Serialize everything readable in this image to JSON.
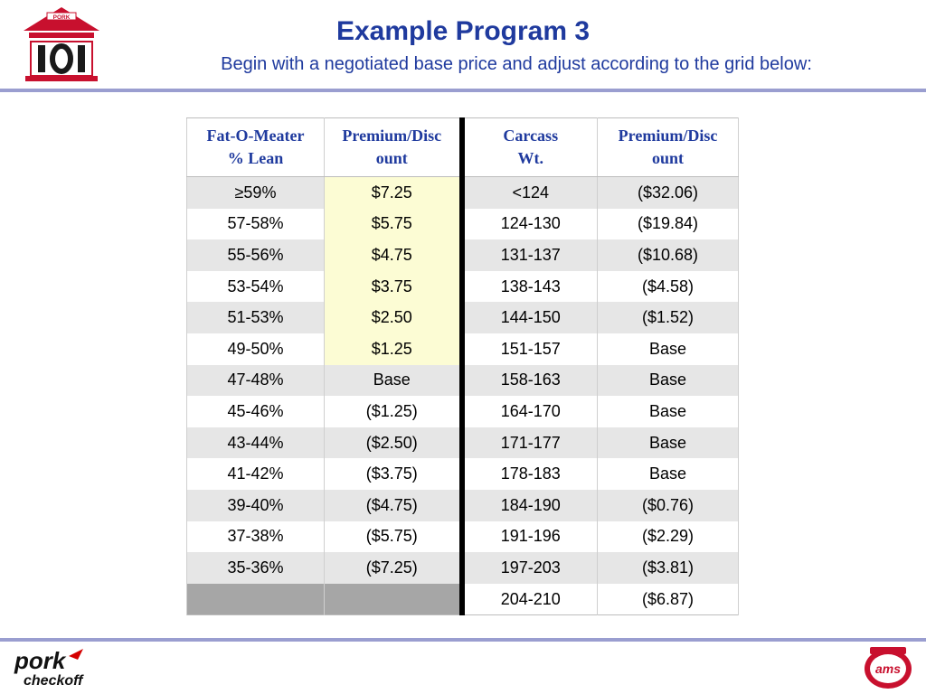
{
  "header": {
    "title": "Example Program 3",
    "subtitle": "Begin with a negotiated base price and adjust according to the grid below:"
  },
  "logos": {
    "top_left": {
      "text": "PORK",
      "mark": "101"
    },
    "bottom_left": {
      "line1": "pork",
      "line2": "checkoff"
    },
    "bottom_right": {
      "text": "ams"
    }
  },
  "colors": {
    "title_blue": "#1f3a9e",
    "discount_red": "#d40000",
    "premium_green": "#008000",
    "premium_highlight": "#fcfcd4",
    "alt_row": "#e6e6e6",
    "rule": "#9a9ed0",
    "logo_red": "#c8102e"
  },
  "table": {
    "headers": [
      "Fat-O-Meater % Lean",
      "Premium/Discount",
      "Carcass Wt.",
      "Premium/Discount"
    ],
    "header_lines": [
      [
        "Fat-O-Meater",
        "% Lean"
      ],
      [
        "Premium/Disc",
        "ount"
      ],
      [
        "Carcass",
        "Wt."
      ],
      [
        "Premium/Disc",
        "ount"
      ]
    ],
    "rows": [
      {
        "lean": "≥59%",
        "lean_adj": "$7.25",
        "wt": "<124",
        "wt_adj": "($32.06)"
      },
      {
        "lean": "57-58%",
        "lean_adj": "$5.75",
        "wt": "124-130",
        "wt_adj": "($19.84)"
      },
      {
        "lean": "55-56%",
        "lean_adj": "$4.75",
        "wt": "131-137",
        "wt_adj": "($10.68)"
      },
      {
        "lean": "53-54%",
        "lean_adj": "$3.75",
        "wt": "138-143",
        "wt_adj": "($4.58)"
      },
      {
        "lean": "51-53%",
        "lean_adj": "$2.50",
        "wt": "144-150",
        "wt_adj": "($1.52)"
      },
      {
        "lean": "49-50%",
        "lean_adj": "$1.25",
        "wt": "151-157",
        "wt_adj": "Base"
      },
      {
        "lean": "47-48%",
        "lean_adj": "Base",
        "wt": "158-163",
        "wt_adj": "Base"
      },
      {
        "lean": "45-46%",
        "lean_adj": "($1.25)",
        "wt": "164-170",
        "wt_adj": "Base"
      },
      {
        "lean": "43-44%",
        "lean_adj": "($2.50)",
        "wt": "171-177",
        "wt_adj": "Base"
      },
      {
        "lean": "41-42%",
        "lean_adj": "($3.75)",
        "wt": "178-183",
        "wt_adj": "Base"
      },
      {
        "lean": "39-40%",
        "lean_adj": "($4.75)",
        "wt": "184-190",
        "wt_adj": "($0.76)"
      },
      {
        "lean": "37-38%",
        "lean_adj": "($5.75)",
        "wt": "191-196",
        "wt_adj": "($2.29)"
      },
      {
        "lean": "35-36%",
        "lean_adj": "($7.25)",
        "wt": "197-203",
        "wt_adj": "($3.81)"
      },
      {
        "lean": "",
        "lean_adj": "",
        "wt": "204-210",
        "wt_adj": "($6.87)"
      }
    ]
  }
}
